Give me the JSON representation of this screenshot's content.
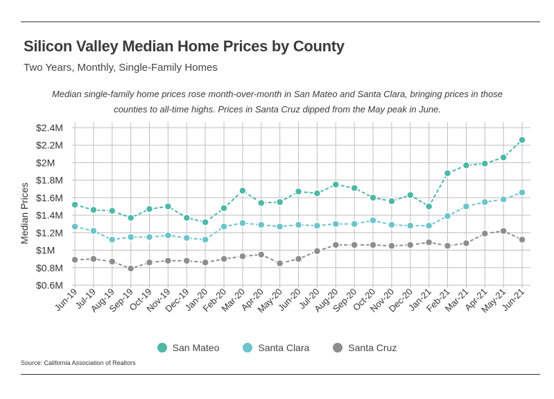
{
  "title": "Silicon Valley Median Home Prices by County",
  "subtitle": "Two Years, Monthly, Single-Family Homes",
  "note": "Median single-family home prices rose month-over-month in San Mateo and Santa Clara, bringing prices in those counties to all-time highs. Prices in Santa Cruz dipped from the May peak in June.",
  "source": "Source:  California Association of Realtors",
  "chart_data": {
    "type": "line",
    "ylabel": "Median Prices",
    "xlabel": "",
    "ylim": [
      0.6,
      2.4
    ],
    "yticks": [
      0.6,
      0.8,
      1.0,
      1.2,
      1.4,
      1.6,
      1.8,
      2.0,
      2.2,
      2.4
    ],
    "ytick_labels": [
      "$0.6M",
      "$0.8M",
      "$1M",
      "$1.2M",
      "$1.4M",
      "$1.6M",
      "$1.8M",
      "$2M",
      "$2.2M",
      "$2.4M"
    ],
    "grid": true,
    "legend_position": "bottom",
    "categories": [
      "Jun-19",
      "Jul-19",
      "Aug-19",
      "Sep-19",
      "Oct-19",
      "Nov-19",
      "Dec-19",
      "Jan-20",
      "Feb-20",
      "Mar-20",
      "Apr-20",
      "May-20",
      "Jun-20",
      "Jul-20",
      "Aug-20",
      "Sep-20",
      "Oct-20",
      "Nov-20",
      "Dec-20",
      "Jan-21",
      "Feb-21",
      "Mar-21",
      "Apr-21",
      "May-21",
      "Jun-21"
    ],
    "series": [
      {
        "name": "San Mateo",
        "color": "#4db8a8",
        "values": [
          1.52,
          1.46,
          1.45,
          1.37,
          1.47,
          1.5,
          1.37,
          1.32,
          1.48,
          1.68,
          1.54,
          1.55,
          1.67,
          1.65,
          1.75,
          1.71,
          1.6,
          1.56,
          1.63,
          1.5,
          1.88,
          1.97,
          1.99,
          2.06,
          2.26
        ]
      },
      {
        "name": "Santa Clara",
        "color": "#6cc4cc",
        "values": [
          1.27,
          1.22,
          1.12,
          1.15,
          1.15,
          1.17,
          1.14,
          1.12,
          1.27,
          1.31,
          1.29,
          1.27,
          1.29,
          1.28,
          1.3,
          1.3,
          1.34,
          1.29,
          1.28,
          1.28,
          1.39,
          1.5,
          1.55,
          1.58,
          1.66
        ]
      },
      {
        "name": "Santa Cruz",
        "color": "#8e8e8e",
        "values": [
          0.89,
          0.9,
          0.87,
          0.79,
          0.86,
          0.88,
          0.88,
          0.86,
          0.9,
          0.93,
          0.95,
          0.85,
          0.9,
          0.99,
          1.06,
          1.06,
          1.06,
          1.05,
          1.06,
          1.09,
          1.05,
          1.08,
          1.19,
          1.22,
          1.12
        ]
      }
    ]
  },
  "legend": {
    "items": [
      {
        "label": "San Mateo",
        "color": "#4db8a8"
      },
      {
        "label": "Santa Clara",
        "color": "#6cc4cc"
      },
      {
        "label": "Santa Cruz",
        "color": "#8e8e8e"
      }
    ]
  }
}
